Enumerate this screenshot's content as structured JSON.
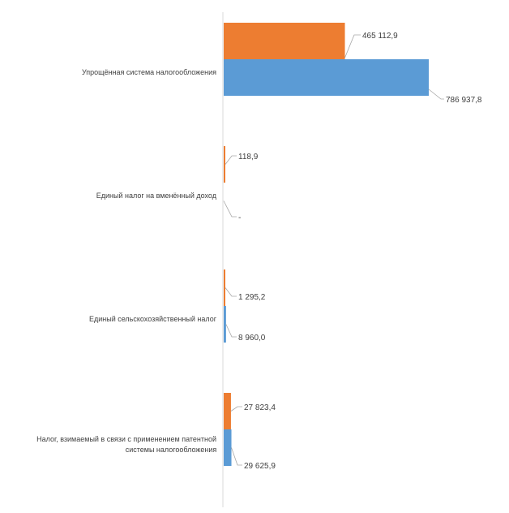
{
  "chart_data": {
    "type": "bar",
    "orientation": "horizontal",
    "categories": [
      "Упрощённая система налогообложения",
      "Единый налог на вменённый доход",
      "Единый сельскохозяйственный налог",
      "Налог, взимаемый в связи с применением патентной системы налогообложения"
    ],
    "series": [
      {
        "values": [
          786937.8,
          0,
          8960.0,
          29625.9
        ],
        "labels": [
          "786 937,8",
          "-",
          "8 960,0",
          "29 625,9"
        ],
        "color": "#5b9bd5"
      },
      {
        "values": [
          465112.9,
          118.9,
          1295.2,
          27823.4
        ],
        "labels": [
          "465 112,9",
          "118,9",
          "1 295,2",
          "27 823,4"
        ],
        "color": "#ed7d31"
      }
    ],
    "title": "",
    "xlabel": "",
    "ylabel": "",
    "xlim": [
      0,
      800000
    ],
    "grid": false,
    "legend": "none"
  }
}
